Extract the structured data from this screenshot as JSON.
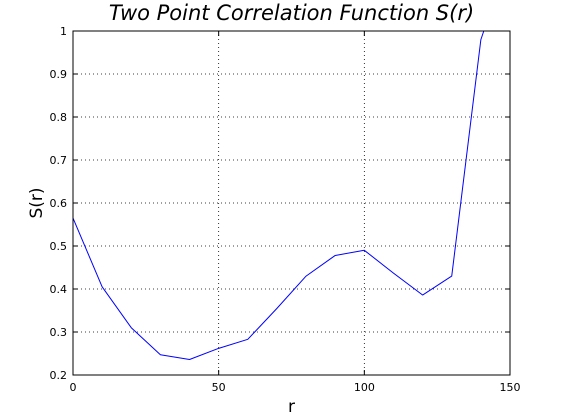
{
  "chart_data": {
    "type": "line",
    "title": "Two Point Correlation Function S(r)",
    "xlabel": "r",
    "ylabel": "S(r)",
    "xlim": [
      0,
      150
    ],
    "ylim": [
      0.2,
      1
    ],
    "xticks": [
      0,
      50,
      100,
      150
    ],
    "yticks": [
      0.2,
      0.3,
      0.4,
      0.5,
      0.6,
      0.7,
      0.8,
      0.9,
      1
    ],
    "grid": true,
    "series": [
      {
        "color": "#0000ff",
        "x": [
          0,
          10,
          20,
          30,
          40,
          50,
          60,
          70,
          80,
          90,
          100,
          110,
          120,
          130,
          140,
          141
        ],
        "y": [
          0.565,
          0.405,
          0.31,
          0.247,
          0.236,
          0.262,
          0.283,
          0.355,
          0.43,
          0.478,
          0.49,
          0.437,
          0.386,
          0.43,
          0.98,
          1.0
        ]
      }
    ]
  }
}
